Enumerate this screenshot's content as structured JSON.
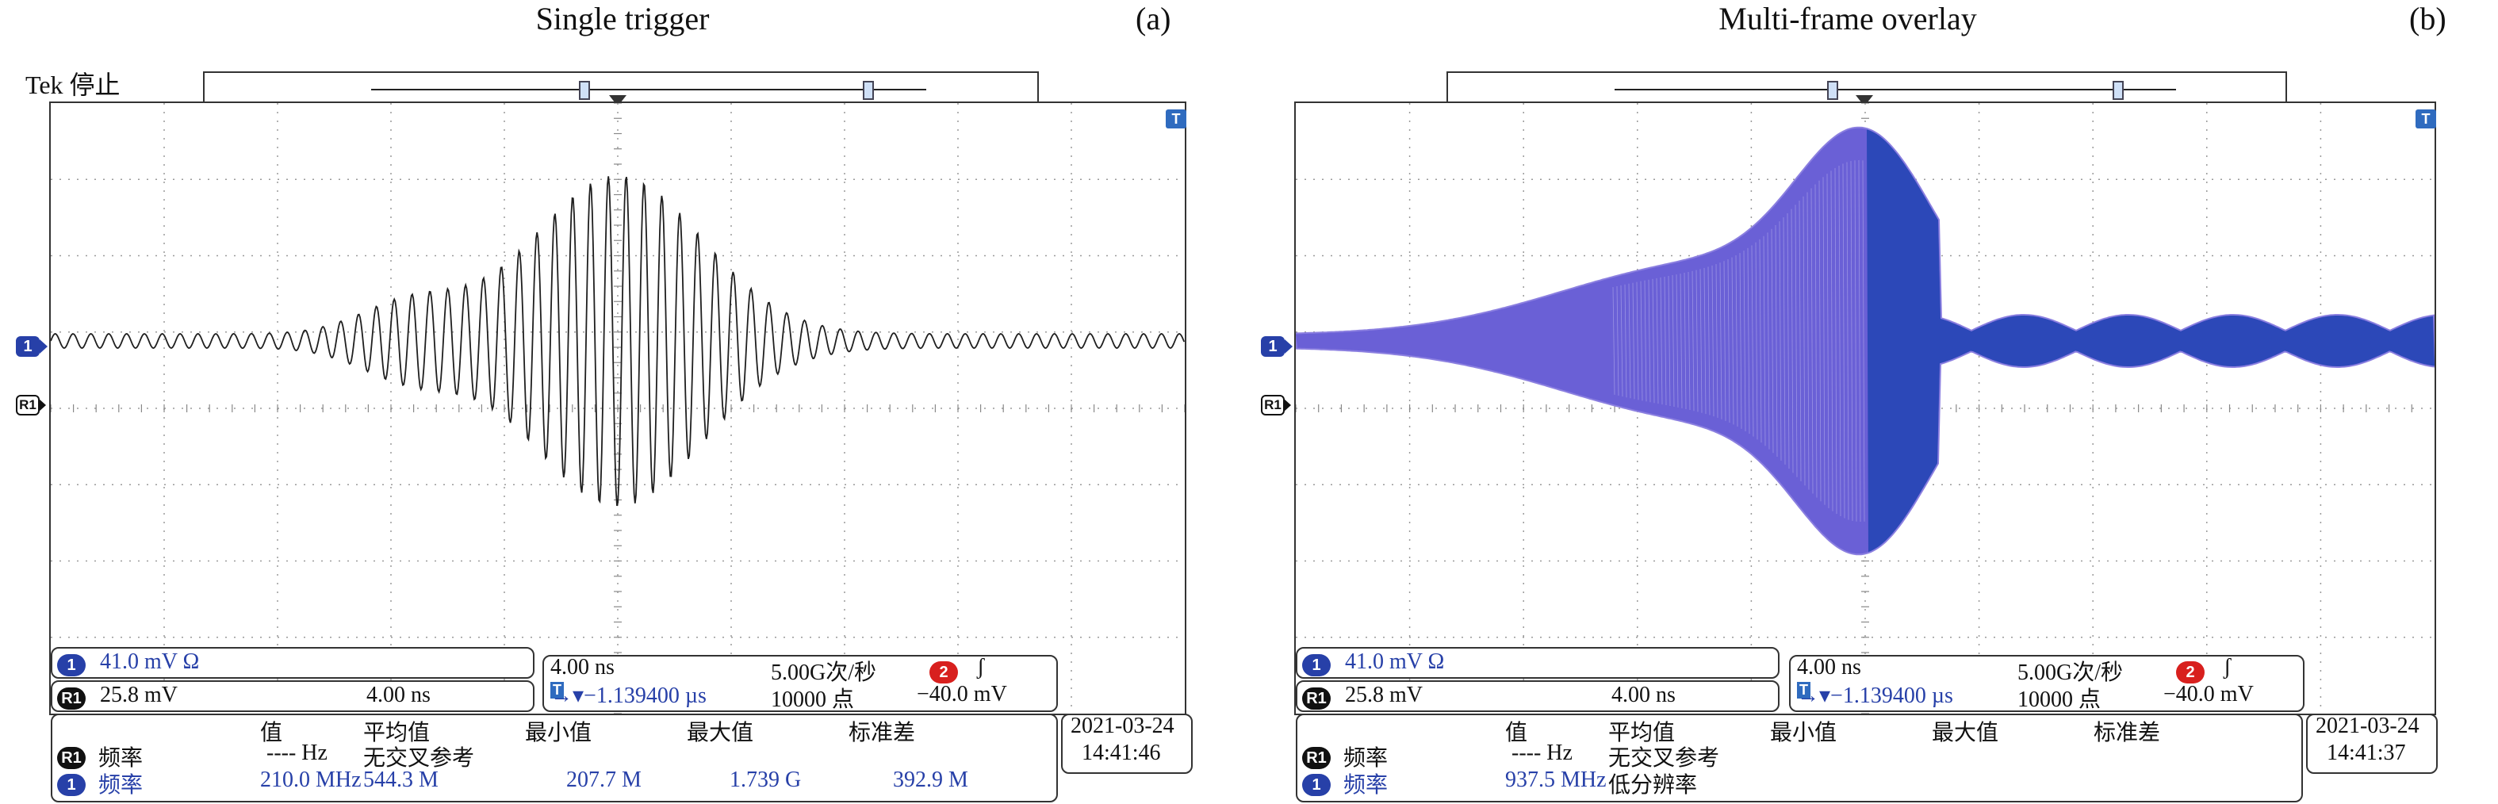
{
  "panels": [
    {
      "id": "a",
      "title": "Single trigger",
      "letter": "(a)",
      "status": "Tek 停止",
      "ch1_marker": "1",
      "ref_marker": "R1",
      "trig_marker": "T",
      "ch1_scale": "41.0 mV Ω",
      "ref_scale": "25.8 mV",
      "ref_time": "4.00 ns",
      "timebase": "4.00 ns",
      "sample_rate": "5.00G次/秒",
      "trig_channel": "2",
      "trig_slope": "ʃ",
      "trig_pos": "→▾−1.139400 µs",
      "record_len": "10000 点",
      "trig_level": "−40.0 mV",
      "meas_headers": [
        "值",
        "平均值",
        "最小值",
        "最大值",
        "标准差"
      ],
      "meas_r1": {
        "badge": "R1",
        "label": "频率",
        "value": "---- Hz",
        "mean": "无交叉参考"
      },
      "meas_ch1": {
        "badge": "1",
        "label": "频率",
        "value": "210.0 MHz",
        "mean": "544.3 M",
        "min": "207.7 M",
        "max": "1.739 G",
        "std": "392.9 M"
      },
      "date": "2021-03-24",
      "time": "14:41:46"
    },
    {
      "id": "b",
      "title": "Multi-frame overlay",
      "letter": "(b)",
      "status": "",
      "ch1_marker": "1",
      "ref_marker": "R1",
      "trig_marker": "T",
      "ch1_scale": "41.0 mV Ω",
      "ref_scale": "25.8 mV",
      "ref_time": "4.00 ns",
      "timebase": "4.00 ns",
      "sample_rate": "5.00G次/秒",
      "trig_channel": "2",
      "trig_slope": "ʃ",
      "trig_pos": "→▾−1.139400 µs",
      "record_len": "10000 点",
      "trig_level": "−40.0 mV",
      "meas_headers": [
        "值",
        "平均值",
        "最小值",
        "最大值",
        "标准差"
      ],
      "meas_r1": {
        "badge": "R1",
        "label": "频率",
        "value": "---- Hz",
        "mean": "无交叉参考"
      },
      "meas_ch1": {
        "badge": "1",
        "label": "频率",
        "value": "937.5 MHz",
        "mean": "低分辨率",
        "min": "",
        "max": "",
        "std": ""
      },
      "date": "2021-03-24",
      "time": "14:41:37"
    }
  ],
  "colors": {
    "trace": "#1f1f1f",
    "overlay_fill": "#8b7fe0",
    "overlay_dark": "#2c48b8",
    "grid": "#888888",
    "accent": "#2740a8"
  }
}
